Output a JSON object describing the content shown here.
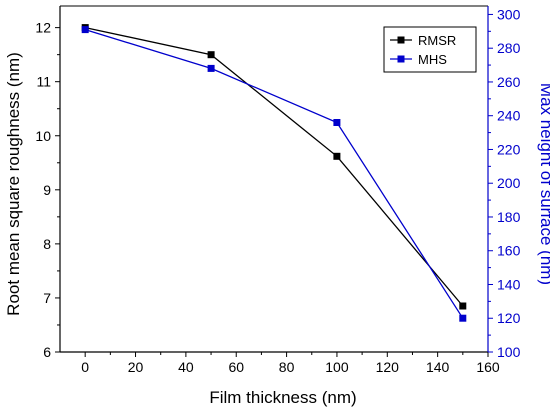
{
  "chart_data": {
    "type": "line",
    "x": [
      0,
      50,
      100,
      150
    ],
    "xlabel": "Film thickness (nm)",
    "xlim": [
      -10,
      160
    ],
    "xticks": [
      "0",
      "20",
      "40",
      "60",
      "80",
      "100",
      "120",
      "140",
      "160"
    ],
    "series": [
      {
        "name": "RMSR",
        "axis": "left",
        "color": "#000000",
        "values": [
          12.0,
          11.5,
          9.62,
          6.85
        ]
      },
      {
        "name": "MHS",
        "axis": "right",
        "color": "#0000cc",
        "values": [
          291,
          268,
          236,
          120
        ]
      }
    ],
    "y_left": {
      "label": "Root mean square roughness (nm)",
      "lim": [
        6,
        12.4
      ],
      "ticks": [
        "6",
        "7",
        "8",
        "9",
        "10",
        "11",
        "12"
      ],
      "color": "#000000"
    },
    "y_right": {
      "label": "Max height of surface (nm)",
      "lim": [
        100,
        305
      ],
      "ticks": [
        "100",
        "120",
        "140",
        "160",
        "180",
        "200",
        "220",
        "240",
        "260",
        "280",
        "300"
      ],
      "color": "#0000cc"
    },
    "legend_position": "top-right",
    "grid": false
  }
}
